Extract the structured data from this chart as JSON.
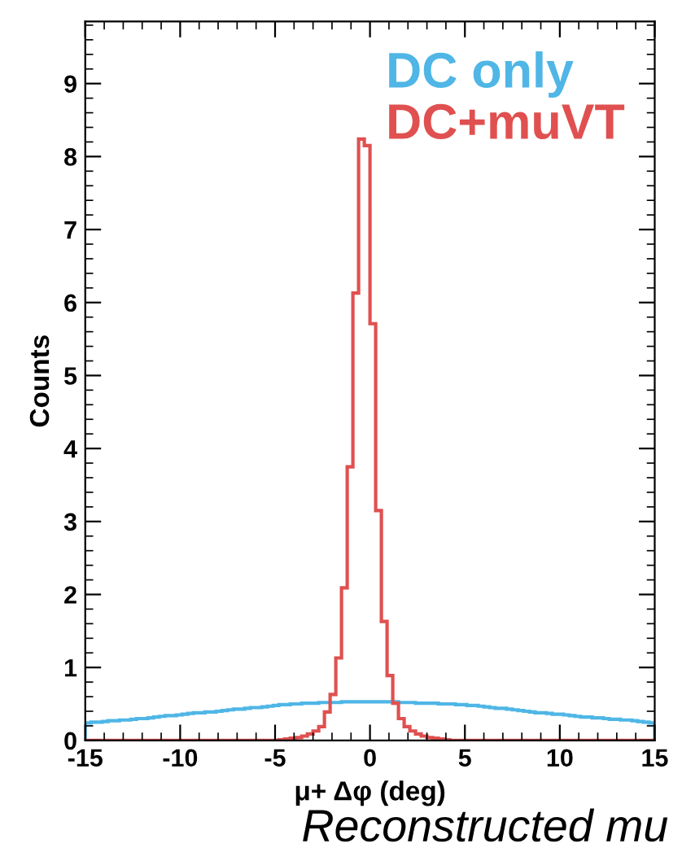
{
  "chart_data": {
    "type": "histogram",
    "xlabel": "μ+ Δφ (deg)",
    "ylabel": "Counts",
    "xlim": [
      -15,
      15
    ],
    "ylim": [
      0,
      9.85
    ],
    "xticks": [
      -15,
      -10,
      -5,
      0,
      5,
      10,
      15
    ],
    "yticks": [
      0,
      1,
      2,
      3,
      4,
      5,
      6,
      7,
      8,
      9
    ],
    "legend": "top right",
    "grid": false,
    "annotations": [
      "Reconstructed mu"
    ],
    "bins": [
      -15,
      -14.7,
      -14.4,
      -14.1,
      -13.8,
      -13.5,
      -13.2,
      -12.9,
      -12.6,
      -12.3,
      -12,
      -11.7,
      -11.4,
      -11.1,
      -10.8,
      -10.5,
      -10.2,
      -9.9,
      -9.6,
      -9.3,
      -9,
      -8.7,
      -8.4,
      -8.1,
      -7.8,
      -7.5,
      -7.2,
      -6.9,
      -6.6,
      -6.3,
      -6,
      -5.7,
      -5.4,
      -5.1,
      -4.8,
      -4.5,
      -4.2,
      -3.9,
      -3.6,
      -3.3,
      -3,
      -2.7,
      -2.4,
      -2.1,
      -1.8,
      -1.5,
      -1.2,
      -0.9,
      -0.6,
      -0.3,
      0,
      0.3,
      0.6,
      0.9,
      1.2,
      1.5,
      1.8,
      2.1,
      2.4,
      2.7,
      3,
      3.3,
      3.6,
      3.9,
      4.2,
      4.5,
      4.8,
      5.1,
      5.4,
      5.7,
      6,
      6.3,
      6.6,
      6.9,
      7.2,
      7.5,
      7.8,
      8.1,
      8.4,
      8.7,
      9,
      9.3,
      9.6,
      9.9,
      10.2,
      10.5,
      10.8,
      11.1,
      11.4,
      11.7,
      12,
      12.3,
      12.6,
      12.9,
      13.2,
      13.5,
      13.8,
      14.1,
      14.4,
      14.7,
      15
    ],
    "series": [
      {
        "name": "DC only",
        "color": "#4fb6e6",
        "values": [
          0.24,
          0.25,
          0.25,
          0.26,
          0.27,
          0.27,
          0.28,
          0.28,
          0.29,
          0.3,
          0.3,
          0.31,
          0.32,
          0.33,
          0.34,
          0.34,
          0.35,
          0.36,
          0.37,
          0.38,
          0.38,
          0.39,
          0.39,
          0.4,
          0.41,
          0.42,
          0.43,
          0.43,
          0.44,
          0.45,
          0.45,
          0.46,
          0.47,
          0.48,
          0.49,
          0.49,
          0.5,
          0.5,
          0.51,
          0.51,
          0.51,
          0.52,
          0.52,
          0.52,
          0.52,
          0.53,
          0.53,
          0.53,
          0.53,
          0.53,
          0.53,
          0.53,
          0.53,
          0.53,
          0.53,
          0.52,
          0.52,
          0.52,
          0.51,
          0.51,
          0.51,
          0.51,
          0.5,
          0.5,
          0.5,
          0.49,
          0.49,
          0.48,
          0.48,
          0.47,
          0.46,
          0.45,
          0.44,
          0.44,
          0.43,
          0.42,
          0.41,
          0.4,
          0.39,
          0.38,
          0.38,
          0.37,
          0.36,
          0.36,
          0.35,
          0.34,
          0.33,
          0.32,
          0.32,
          0.31,
          0.31,
          0.3,
          0.29,
          0.29,
          0.28,
          0.28,
          0.27,
          0.26,
          0.25,
          0.24
        ]
      },
      {
        "name": "DC+muVT",
        "color": "#e05050",
        "values": [
          0,
          0,
          0,
          0,
          0,
          0,
          0,
          0,
          0,
          0,
          0,
          0,
          0,
          0,
          0,
          0,
          0,
          0,
          0,
          0,
          0,
          0,
          0,
          0,
          0,
          0,
          0,
          0,
          0,
          0,
          0,
          0,
          0,
          0,
          0.01,
          0.02,
          0.03,
          0.04,
          0.06,
          0.09,
          0.13,
          0.19,
          0.39,
          0.63,
          1.13,
          2.09,
          3.75,
          6.13,
          8.24,
          8.15,
          5.71,
          3.15,
          1.63,
          0.89,
          0.51,
          0.3,
          0.19,
          0.13,
          0.09,
          0.06,
          0.04,
          0.03,
          0.02,
          0.01,
          0,
          0,
          0,
          0,
          0,
          0,
          0,
          0,
          0,
          0,
          0,
          0,
          0,
          0,
          0,
          0,
          0,
          0,
          0,
          0,
          0,
          0,
          0,
          0,
          0,
          0,
          0,
          0,
          0,
          0,
          0,
          0,
          0,
          0,
          0,
          0
        ]
      }
    ]
  }
}
